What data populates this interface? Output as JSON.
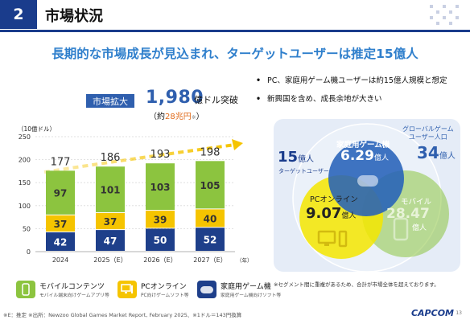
{
  "header": {
    "number": "2",
    "title": "市場状況"
  },
  "headline": "長期的な市場成長が見込まれ、ターゲットユーザーは推定15億人",
  "market": {
    "badge": "市場拡大",
    "big_value": "1,980",
    "big_unit": "億ドル突破",
    "sub_prefix": "（約",
    "sub_value": "28兆円",
    "sub_note": "※",
    "sub_suffix": "）"
  },
  "unit_label": "（10億ドル）",
  "chart_data": {
    "type": "bar",
    "stacked": true,
    "categories": [
      "2024",
      "2025（E）",
      "2026（E）",
      "2027（E）"
    ],
    "totals": [
      177,
      186,
      193,
      198
    ],
    "series": [
      {
        "key": "console",
        "values": [
          42,
          47,
          50,
          52
        ],
        "color": "#1e3f8a"
      },
      {
        "key": "pc",
        "values": [
          37,
          37,
          39,
          40
        ],
        "color": "#f5c400"
      },
      {
        "key": "mobile",
        "values": [
          97,
          101,
          103,
          105
        ],
        "color": "#8cc43f"
      }
    ],
    "y_ticks": [
      0,
      50,
      100,
      150,
      200,
      250
    ],
    "ylim": [
      0,
      250
    ],
    "year_suffix": "（年）",
    "grid": true
  },
  "bullets": [
    "PC、家庭用ゲーム機ユーザーは約15億人規模と想定",
    "新興国を含め、成長余地が大きい"
  ],
  "venn": {
    "target_value": "15",
    "target_unit": "億人",
    "target_label": "ターゲットユーザー",
    "global_label_1": "グローバルゲーム",
    "global_label_2": "ユーザー人口",
    "global_value": "34",
    "global_unit": "億人",
    "console_label": "家庭用ゲーム機",
    "console_value": "6.29",
    "console_unit": "億人",
    "pc_label": "PCオンライン",
    "pc_value": "9.07",
    "pc_unit": "億人",
    "mobile_label": "モバイル",
    "mobile_value": "28.47",
    "mobile_unit": "億人",
    "note": "※セグメント間に重複があるため、合計が市場全体を超えております。"
  },
  "legend": [
    {
      "label": "モバイルコンテンツ",
      "sub": "モバイル端末向けゲームアプリ等",
      "color": "#8cc43f",
      "icon": "smartphone-icon"
    },
    {
      "label": "PCオンライン",
      "sub": "PC向けゲームソフト等",
      "color": "#f5c400",
      "icon": "pc-icon"
    },
    {
      "label": "家庭用ゲーム機",
      "sub": "家庭用ゲーム機向けソフト等",
      "color": "#1e3f8a",
      "icon": "gamepad-icon"
    }
  ],
  "footnote": "※E：推定 ※出所：Newzoo Global Games Market Report, February 2025、※1ドル＝143円換算",
  "logo": "CAPCOM",
  "page_number": "13"
}
